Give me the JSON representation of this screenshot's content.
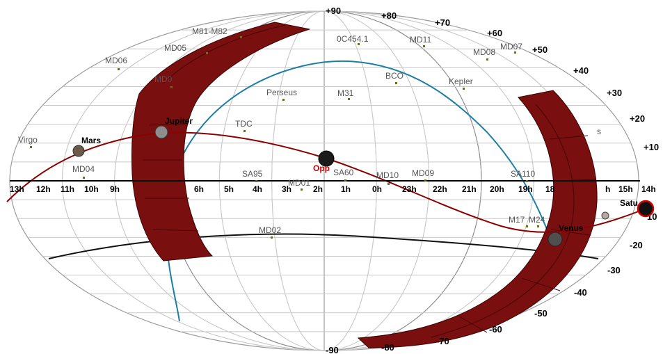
{
  "colors": {
    "exclusion_band": "#7a0f0f",
    "ecliptic": "#8b0000",
    "galactic_plane": "#1a7fa3",
    "field_marker": "#6b6b1c",
    "grid": "#c9c9c9"
  },
  "ra_labels": [
    "13h",
    "12h",
    "11h",
    "10h",
    "9h",
    "6h",
    "5h",
    "4h",
    "3h",
    "2h",
    "1h",
    "0h",
    "23h",
    "22h",
    "21h",
    "20h",
    "19h",
    "18",
    "h",
    "15h",
    "14h"
  ],
  "dec_labels": [
    "+90",
    "+80",
    "+70",
    "+60",
    "+50",
    "+40",
    "+30",
    "+20",
    "+10",
    "10",
    "-20",
    "-30",
    "-40",
    "-50",
    "-60",
    "-70",
    "-80",
    "-90"
  ],
  "fields": [
    {
      "name": "M81-M82"
    },
    {
      "name": "MD05"
    },
    {
      "name": "MD06"
    },
    {
      "name": "MD0"
    },
    {
      "name": "Virgo"
    },
    {
      "name": "MD04"
    },
    {
      "name": "0C454.1"
    },
    {
      "name": "MD11"
    },
    {
      "name": "MD08"
    },
    {
      "name": "MD07"
    },
    {
      "name": "BCO"
    },
    {
      "name": "Kepler"
    },
    {
      "name": "Perseus"
    },
    {
      "name": "M31"
    },
    {
      "name": "TDC"
    },
    {
      "name": "SA95"
    },
    {
      "name": "MD01"
    },
    {
      "name": "SA60"
    },
    {
      "name": "MD10"
    },
    {
      "name": "MD09"
    },
    {
      "name": "SA110"
    },
    {
      "name": "M17"
    },
    {
      "name": "M24"
    },
    {
      "name": "MD02"
    },
    {
      "name": "s"
    }
  ],
  "bodies": [
    {
      "name": "Mars"
    },
    {
      "name": "Jupiter"
    },
    {
      "name": "Opp"
    },
    {
      "name": "Venus"
    },
    {
      "name": "Satu"
    }
  ]
}
